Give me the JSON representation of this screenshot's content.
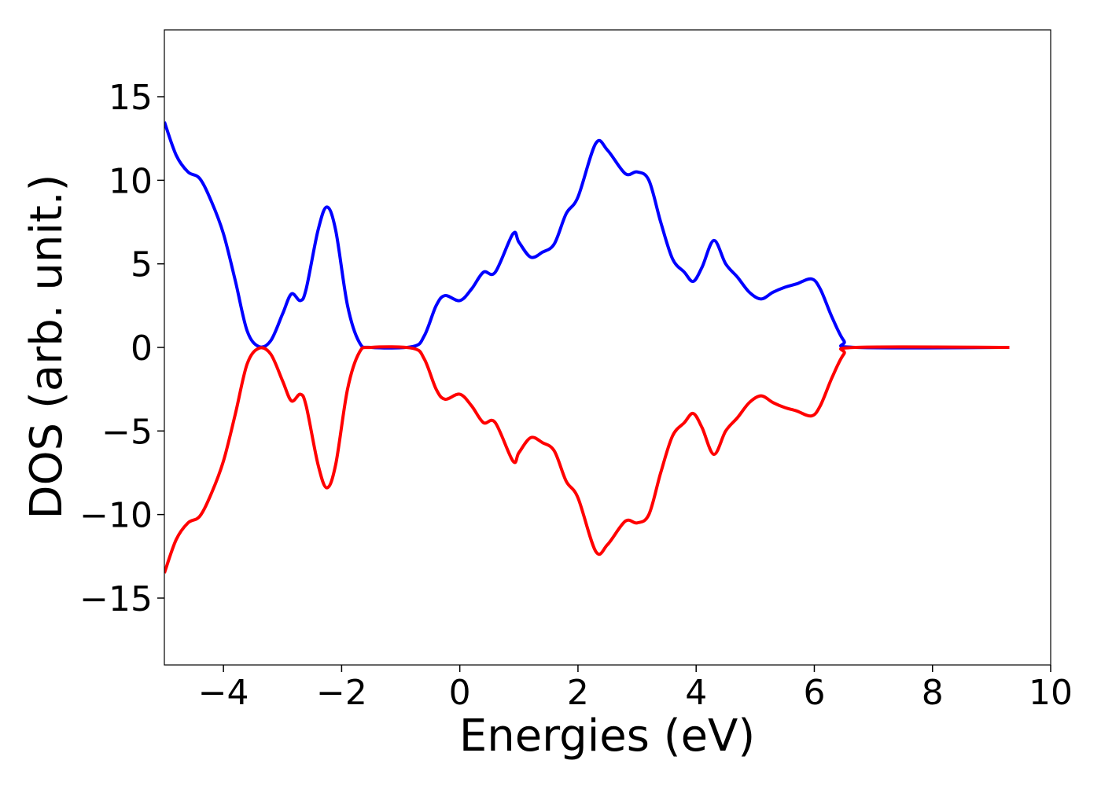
{
  "chart_data": {
    "type": "line",
    "xlabel": "Energies (eV)",
    "ylabel": "DOS (arb. unit.)",
    "x": [
      -5,
      -4.8,
      -4.6,
      -4.4,
      -4.2,
      -4.0,
      -3.8,
      -3.6,
      -3.4,
      -3.2,
      -3.0,
      -2.85,
      -2.7,
      -2.6,
      -2.4,
      -2.25,
      -2.1,
      -1.9,
      -1.7,
      -1.5,
      -0.8,
      -0.6,
      -0.4,
      -0.25,
      0.0,
      0.2,
      0.4,
      0.6,
      0.9,
      1.0,
      1.2,
      1.4,
      1.6,
      1.8,
      2.0,
      2.3,
      2.5,
      2.8,
      3.0,
      3.2,
      3.4,
      3.6,
      3.8,
      3.95,
      4.1,
      4.3,
      4.5,
      4.7,
      4.9,
      5.1,
      5.3,
      5.5,
      5.7,
      5.95,
      6.1,
      6.3,
      6.5,
      6.7,
      9.3
    ],
    "series": [
      {
        "color": "#0000ff",
        "values": [
          13.5,
          11.5,
          10.5,
          10.1,
          8.7,
          6.8,
          4.0,
          1.0,
          0.05,
          0.4,
          2.0,
          3.2,
          2.8,
          3.5,
          7.0,
          8.4,
          7.0,
          2.5,
          0.3,
          0.0,
          0.05,
          0.7,
          2.5,
          3.1,
          2.8,
          3.5,
          4.5,
          4.5,
          6.8,
          6.3,
          5.4,
          5.7,
          6.2,
          8.0,
          9.0,
          12.2,
          11.8,
          10.4,
          10.5,
          10.0,
          7.5,
          5.3,
          4.5,
          3.95,
          4.8,
          6.4,
          5.0,
          4.2,
          3.3,
          2.9,
          3.3,
          3.6,
          3.8,
          4.1,
          3.5,
          1.8,
          0.4,
          0.0,
          0.0
        ]
      },
      {
        "color": "#ff0000",
        "values": [
          -13.5,
          -11.5,
          -10.5,
          -10.1,
          -8.7,
          -6.8,
          -4.0,
          -1.0,
          -0.05,
          -0.4,
          -2.0,
          -3.2,
          -2.8,
          -3.5,
          -7.0,
          -8.4,
          -7.0,
          -2.5,
          -0.3,
          0.0,
          -0.05,
          -0.7,
          -2.5,
          -3.1,
          -2.8,
          -3.5,
          -4.5,
          -4.5,
          -6.8,
          -6.3,
          -5.4,
          -5.7,
          -6.2,
          -8.0,
          -9.0,
          -12.2,
          -11.8,
          -10.4,
          -10.5,
          -10.0,
          -7.5,
          -5.3,
          -4.5,
          -3.95,
          -4.8,
          -6.4,
          -5.0,
          -4.2,
          -3.3,
          -2.9,
          -3.3,
          -3.6,
          -3.8,
          -4.1,
          -3.5,
          -1.8,
          -0.4,
          0.0,
          0.0
        ]
      }
    ],
    "xlim": [
      -5,
      10
    ],
    "xticks": [
      {
        "value": -4,
        "label": "−4"
      },
      {
        "value": -2,
        "label": "−2"
      },
      0,
      2,
      4,
      6,
      8,
      10
    ],
    "ylim": [
      -19,
      19
    ],
    "yticks": [
      {
        "value": -15,
        "label": "−15"
      },
      {
        "value": -10,
        "label": "−10"
      },
      {
        "value": -5,
        "label": "−5"
      },
      0,
      5,
      10,
      15
    ],
    "grid": false
  }
}
